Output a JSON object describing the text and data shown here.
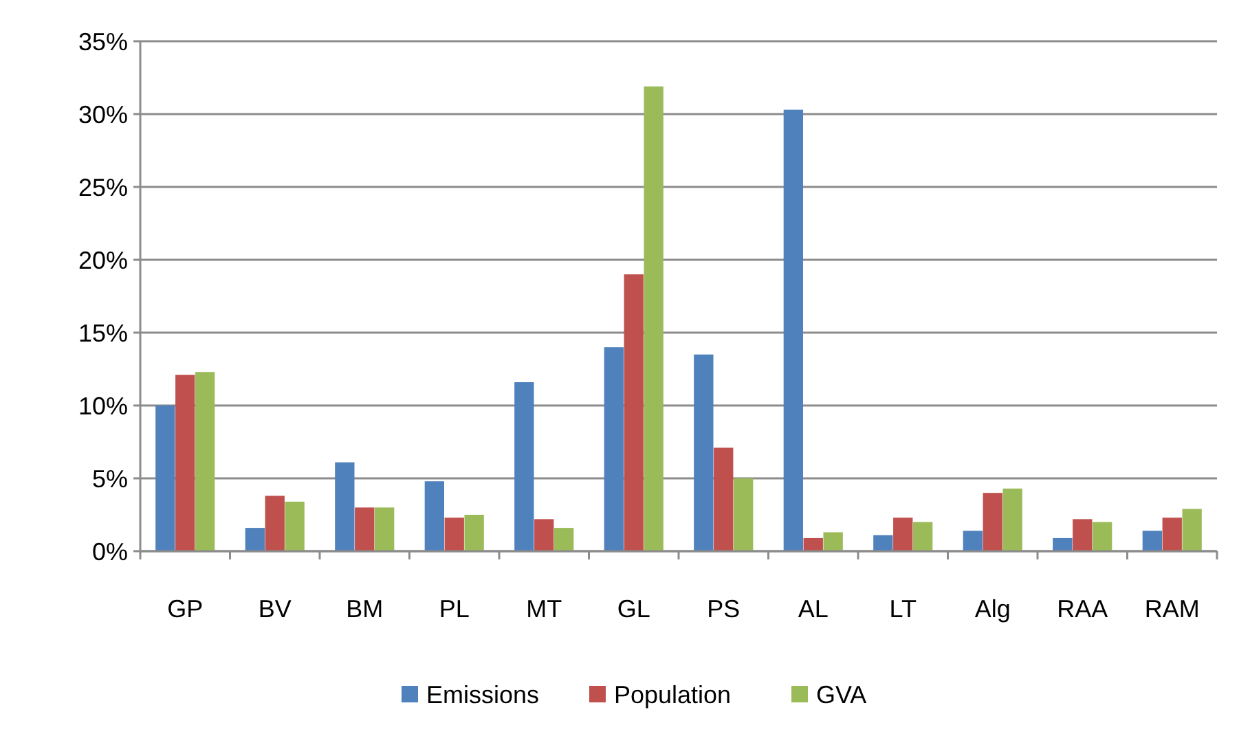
{
  "chart_data": {
    "type": "bar",
    "categories": [
      "GP",
      "BV",
      "BM",
      "PL",
      "MT",
      "GL",
      "PS",
      "AL",
      "LT",
      "Alg",
      "RAA",
      "RAM"
    ],
    "series": [
      {
        "name": "Emissions",
        "color": "#4f81bd",
        "values": [
          10.0,
          1.6,
          6.1,
          4.8,
          11.6,
          14.0,
          13.5,
          30.3,
          1.1,
          1.4,
          0.9,
          1.4
        ]
      },
      {
        "name": "Population",
        "color": "#c0504d",
        "values": [
          12.1,
          3.8,
          3.0,
          2.3,
          2.2,
          19.0,
          7.1,
          0.9,
          2.3,
          4.0,
          2.2,
          2.3
        ]
      },
      {
        "name": "GVA",
        "color": "#9bbb59",
        "values": [
          12.3,
          3.4,
          3.0,
          2.5,
          1.6,
          31.9,
          5.0,
          1.3,
          2.0,
          4.3,
          2.0,
          2.9
        ]
      }
    ],
    "ylim": [
      0,
      35
    ],
    "yticks": [
      {
        "value": 0,
        "label": "0%"
      },
      {
        "value": 5,
        "label": "5%"
      },
      {
        "value": 10,
        "label": "10%"
      },
      {
        "value": 15,
        "label": "15%"
      },
      {
        "value": 20,
        "label": "20%"
      },
      {
        "value": 25,
        "label": "25%"
      },
      {
        "value": 30,
        "label": "30%"
      },
      {
        "value": 35,
        "label": "35%"
      }
    ],
    "grid": "y",
    "legend": "bottom"
  }
}
